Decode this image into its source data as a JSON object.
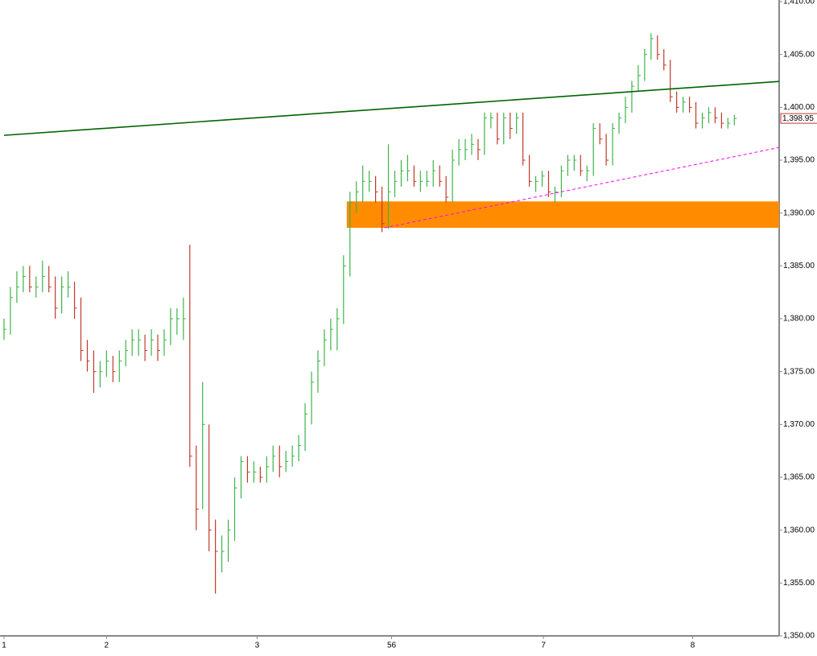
{
  "chart_data": {
    "type": "ohlc",
    "series": {
      "up_color": "#3cb44b",
      "down_color": "#c0392b",
      "high": [
        1380,
        1383,
        1384.5,
        1385,
        1385,
        1384,
        1385.5,
        1385,
        1384,
        1384,
        1384.5,
        1383.5,
        1382,
        1378,
        1377,
        1376,
        1377,
        1376.5,
        1377,
        1378,
        1379,
        1379,
        1378.5,
        1379,
        1378.5,
        1379,
        1381,
        1381,
        1382,
        1387,
        1368,
        1374,
        1370,
        1361,
        1359.5,
        1361,
        1365,
        1367,
        1367,
        1366.5,
        1366,
        1367,
        1368,
        1368,
        1367.5,
        1368,
        1369,
        1372,
        1375,
        1377,
        1379,
        1380,
        1381,
        1386,
        1392,
        1393,
        1394.5,
        1394,
        1393.5,
        1392.5,
        1396.5,
        1394,
        1395,
        1395.5,
        1394.5,
        1394,
        1394,
        1395,
        1394.5,
        1393.5,
        1396,
        1397,
        1397,
        1397.5,
        1397,
        1399.5,
        1399.5,
        1399.5,
        1399.5,
        1399.5,
        1399.5,
        1399.5,
        1395.5,
        1393.5,
        1394,
        1394,
        1392.5,
        1394.5,
        1395.5,
        1395.5,
        1395.5,
        1394.5,
        1398.5,
        1398.5,
        1397.5,
        1398.5,
        1399.5,
        1401,
        1402.5,
        1404,
        1405.5,
        1407,
        1406.8,
        1405.5,
        1404.5,
        1401.5,
        1401,
        1401,
        1400.5,
        1399.5,
        1400,
        1400,
        1399.5,
        1399,
        1399.3
      ],
      "low": [
        1378,
        1378.5,
        1381.5,
        1382.5,
        1382.5,
        1382,
        1382.5,
        1382.5,
        1380,
        1380.5,
        1382,
        1380,
        1376,
        1375,
        1373,
        1373.5,
        1374.5,
        1374,
        1374,
        1375.5,
        1376.5,
        1376.5,
        1376,
        1376.5,
        1376,
        1376.5,
        1377.5,
        1378.5,
        1378,
        1366,
        1360,
        1362,
        1358,
        1354,
        1356,
        1357,
        1359,
        1363,
        1364.5,
        1364.5,
        1364.5,
        1364.5,
        1365.5,
        1365,
        1365.5,
        1366,
        1366.5,
        1367.5,
        1370,
        1373,
        1375.5,
        1377,
        1377,
        1379.5,
        1384,
        1390,
        1391,
        1392,
        1391,
        1388.2,
        1388.5,
        1391.5,
        1392.5,
        1393,
        1392.5,
        1392,
        1392.5,
        1392.5,
        1392.5,
        1391,
        1391,
        1394.5,
        1395,
        1395.5,
        1395,
        1395.5,
        1398,
        1396.5,
        1396.5,
        1397,
        1397.5,
        1394.5,
        1392.5,
        1392,
        1392.5,
        1391.5,
        1391,
        1391.5,
        1393.5,
        1394,
        1393.5,
        1393,
        1393.5,
        1396.5,
        1394.5,
        1394.5,
        1397.5,
        1398.5,
        1399.5,
        1401.5,
        1402.5,
        1404.5,
        1404.5,
        1403.5,
        1400.5,
        1399.5,
        1399.5,
        1399.5,
        1398,
        1398,
        1398.5,
        1398.5,
        1398,
        1398,
        1398.3
      ],
      "close": [
        1379,
        1382,
        1383,
        1384,
        1383,
        1383,
        1384,
        1383,
        1381,
        1383,
        1383,
        1381,
        1377,
        1376,
        1375,
        1375,
        1376,
        1375,
        1376,
        1377,
        1378,
        1378,
        1377,
        1378,
        1377,
        1378,
        1380,
        1380,
        1380,
        1367,
        1362,
        1370,
        1360,
        1358,
        1358,
        1360,
        1364,
        1366.5,
        1365.5,
        1365.5,
        1365,
        1366,
        1367,
        1366,
        1366.5,
        1367,
        1368,
        1371,
        1374,
        1376,
        1378,
        1379,
        1380,
        1385,
        1391,
        1392,
        1393,
        1393,
        1392,
        1389,
        1392,
        1393,
        1394,
        1394,
        1393,
        1393,
        1393,
        1394,
        1393,
        1391.5,
        1395,
        1396,
        1396,
        1396.5,
        1396,
        1399,
        1399,
        1397,
        1399,
        1398,
        1399,
        1395,
        1393,
        1393,
        1393.5,
        1392,
        1392,
        1394,
        1395,
        1395,
        1394,
        1394,
        1398,
        1397,
        1395,
        1398,
        1399,
        1400,
        1402,
        1403,
        1405,
        1406.5,
        1405,
        1404,
        1401,
        1400,
        1400.5,
        1400,
        1398.5,
        1399,
        1399.5,
        1399,
        1398.5,
        1398.5,
        1398.95
      ]
    },
    "xlim": [
      0,
      121
    ],
    "xticks": [
      {
        "value": 0,
        "label": "1"
      },
      {
        "value": 16,
        "label": "2"
      },
      {
        "value": 39.5,
        "label": "3"
      },
      {
        "value": 60.5,
        "label": "56"
      },
      {
        "value": 84.2,
        "label": "7"
      },
      {
        "value": 107.5,
        "label": "8"
      }
    ],
    "ylim": [
      1350,
      1410
    ],
    "yticks": [
      {
        "value": 1350,
        "label": "1,350.00"
      },
      {
        "value": 1355,
        "label": "1,355.00"
      },
      {
        "value": 1360,
        "label": "1,360.00"
      },
      {
        "value": 1365,
        "label": "1,365.00"
      },
      {
        "value": 1370,
        "label": "1,370.00"
      },
      {
        "value": 1375,
        "label": "1,375.00"
      },
      {
        "value": 1380,
        "label": "1,380.00"
      },
      {
        "value": 1385,
        "label": "1,385.00"
      },
      {
        "value": 1390,
        "label": "1,390.00"
      },
      {
        "value": 1395,
        "label": "1,395.00"
      },
      {
        "value": 1400,
        "label": "1,400.00"
      },
      {
        "value": 1405,
        "label": "1,405.00"
      },
      {
        "value": 1410,
        "label": "1,410.00"
      }
    ],
    "last_price": {
      "value": 1398.95,
      "label": "1,398.95",
      "color": "#c0392b"
    },
    "zones": [
      {
        "color": "#ff8c00",
        "x": [
          53.5,
          121
        ],
        "y": [
          1388.6,
          1391.1
        ]
      }
    ],
    "trendlines": [
      {
        "color": "#006400",
        "dash": false,
        "x": [
          0,
          121
        ],
        "y": [
          1397.35,
          1402.45
        ]
      },
      {
        "color": "#ff00ff",
        "dash": true,
        "x": [
          59.4,
          121
        ],
        "y": [
          1388.6,
          1396.2
        ]
      }
    ]
  }
}
